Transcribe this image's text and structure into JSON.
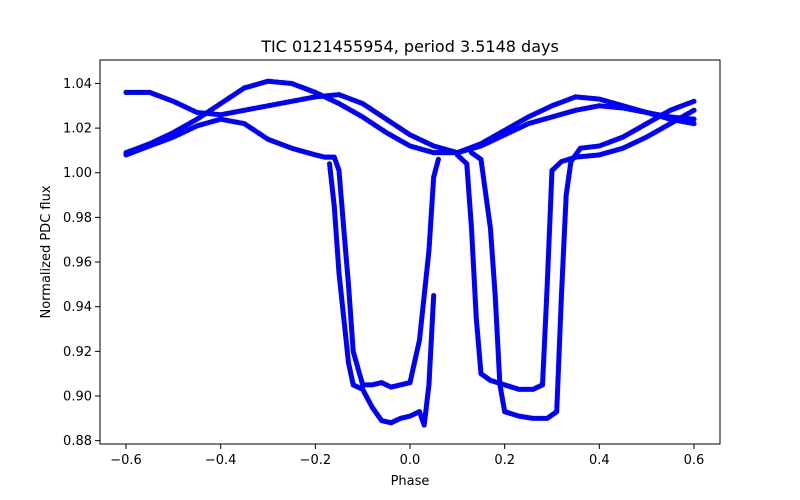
{
  "chart_data": {
    "type": "scatter",
    "title": "TIC 0121455954, period 3.5148 days",
    "xlabel": "Phase",
    "ylabel": "Normalized PDC flux",
    "xlim": [
      -0.655,
      0.655
    ],
    "ylim": [
      0.8785,
      1.0505
    ],
    "x_ticks": [
      -0.6,
      -0.4,
      -0.2,
      0.0,
      0.2,
      0.4,
      0.6
    ],
    "y_ticks": [
      0.88,
      0.9,
      0.92,
      0.94,
      0.96,
      0.98,
      1.0,
      1.02,
      1.04
    ],
    "x_tick_labels": [
      "−0.6",
      "−0.4",
      "−0.2",
      "0.0",
      "0.2",
      "0.4",
      "0.6"
    ],
    "y_tick_labels": [
      "0.88",
      "0.90",
      "0.92",
      "0.94",
      "0.96",
      "0.98",
      "1.00",
      "1.02",
      "1.04"
    ],
    "grid": false,
    "marker_color": "#0000ff",
    "series": [
      {
        "x": [
          -0.6,
          -0.55,
          -0.5,
          -0.45,
          -0.4,
          -0.35,
          -0.3,
          -0.25,
          -0.2,
          -0.15,
          -0.1,
          -0.05,
          0.0,
          0.05,
          0.1,
          0.15,
          0.2,
          0.25,
          0.3,
          0.35,
          0.4,
          0.45,
          0.5,
          0.55,
          0.6
        ],
        "y": [
          1.036,
          1.036,
          1.032,
          1.027,
          1.026,
          1.028,
          1.03,
          1.032,
          1.034,
          1.035,
          1.031,
          1.024,
          1.017,
          1.012,
          1.009,
          1.012,
          1.017,
          1.022,
          1.025,
          1.028,
          1.03,
          1.029,
          1.027,
          1.025,
          1.024
        ]
      },
      {
        "x": [
          -0.6,
          -0.55,
          -0.5,
          -0.45,
          -0.4,
          -0.35,
          -0.3,
          -0.25,
          -0.2,
          -0.15,
          -0.1,
          -0.05,
          0.0,
          0.05,
          0.1,
          0.15,
          0.2,
          0.25,
          0.3,
          0.35,
          0.4,
          0.45,
          0.5,
          0.55,
          0.6
        ],
        "y": [
          1.009,
          1.013,
          1.018,
          1.024,
          1.031,
          1.038,
          1.041,
          1.04,
          1.036,
          1.031,
          1.025,
          1.018,
          1.012,
          1.009,
          1.009,
          1.013,
          1.019,
          1.025,
          1.03,
          1.034,
          1.033,
          1.03,
          1.027,
          1.024,
          1.022
        ]
      },
      {
        "x": [
          -0.6,
          -0.55,
          -0.5,
          -0.45,
          -0.4,
          -0.35,
          -0.3,
          -0.25,
          -0.2,
          -0.18,
          -0.16,
          -0.15,
          -0.14,
          -0.13,
          -0.12,
          -0.1,
          -0.08,
          -0.06,
          -0.04,
          -0.02,
          0.0,
          0.02,
          0.04,
          0.05,
          0.06
        ],
        "y": [
          1.008,
          1.012,
          1.016,
          1.021,
          1.024,
          1.022,
          1.015,
          1.011,
          1.008,
          1.007,
          1.007,
          1.001,
          0.975,
          0.95,
          0.92,
          0.905,
          0.905,
          0.906,
          0.904,
          0.905,
          0.906,
          0.925,
          0.965,
          0.998,
          1.006
        ]
      },
      {
        "x": [
          -0.17,
          -0.16,
          -0.15,
          -0.14,
          -0.13,
          -0.12,
          -0.1,
          -0.08,
          -0.06,
          -0.04,
          -0.02,
          0.0,
          0.02,
          0.03,
          0.04,
          0.05
        ],
        "y": [
          1.004,
          0.985,
          0.955,
          0.935,
          0.915,
          0.905,
          0.903,
          0.895,
          0.889,
          0.888,
          0.89,
          0.891,
          0.893,
          0.887,
          0.905,
          0.945
        ]
      },
      {
        "x": [
          0.1,
          0.12,
          0.13,
          0.14,
          0.15,
          0.17,
          0.2,
          0.23,
          0.26,
          0.28,
          0.29,
          0.3,
          0.32,
          0.35,
          0.4,
          0.45,
          0.5,
          0.55,
          0.6
        ],
        "y": [
          1.008,
          1.004,
          0.975,
          0.935,
          0.91,
          0.907,
          0.905,
          0.903,
          0.903,
          0.905,
          0.95,
          1.001,
          1.005,
          1.007,
          1.008,
          1.011,
          1.016,
          1.022,
          1.028
        ]
      },
      {
        "x": [
          0.13,
          0.15,
          0.17,
          0.18,
          0.19,
          0.2,
          0.23,
          0.26,
          0.29,
          0.31,
          0.32,
          0.33,
          0.34,
          0.36,
          0.4,
          0.45,
          0.5,
          0.55,
          0.6
        ],
        "y": [
          1.009,
          1.006,
          0.975,
          0.945,
          0.905,
          0.893,
          0.891,
          0.89,
          0.89,
          0.893,
          0.945,
          0.99,
          1.005,
          1.011,
          1.012,
          1.016,
          1.022,
          1.028,
          1.032
        ]
      }
    ]
  }
}
